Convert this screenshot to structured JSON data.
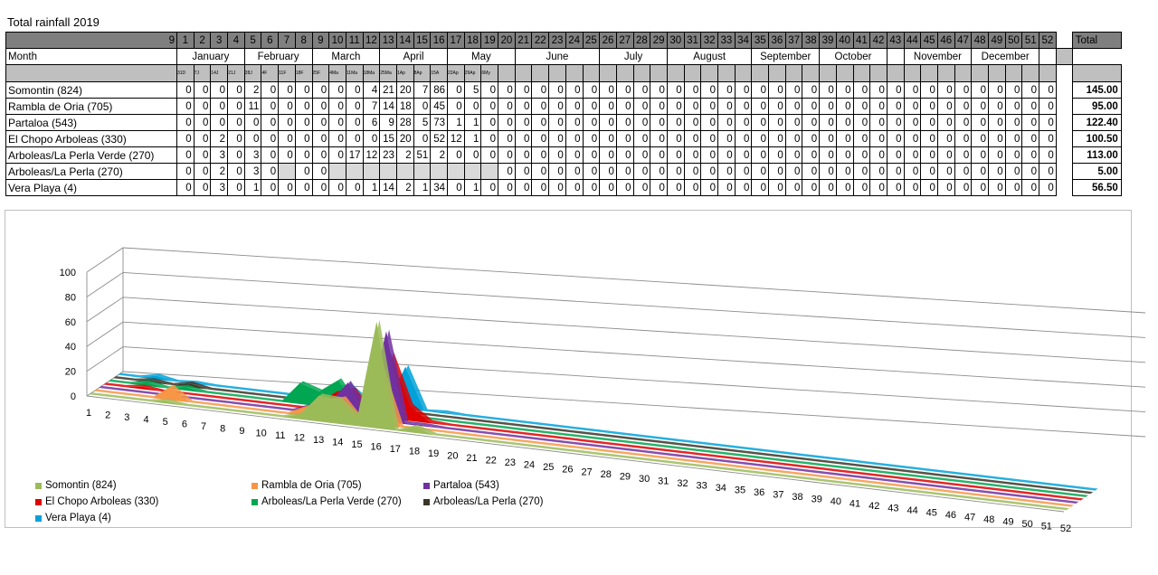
{
  "title": "Total rainfall 2019",
  "table": {
    "week_first_label": "9",
    "weeks": [
      "1",
      "2",
      "3",
      "4",
      "5",
      "6",
      "7",
      "8",
      "9",
      "10",
      "11",
      "12",
      "13",
      "14",
      "15",
      "16",
      "17",
      "18",
      "19",
      "20",
      "21",
      "22",
      "23",
      "24",
      "25",
      "26",
      "27",
      "28",
      "29",
      "30",
      "31",
      "32",
      "33",
      "34",
      "35",
      "36",
      "37",
      "38",
      "39",
      "40",
      "41",
      "42",
      "43",
      "44",
      "45",
      "46",
      "47",
      "48",
      "49",
      "50",
      "51",
      "52"
    ],
    "total_header": "Total",
    "month_header": "Month",
    "months": [
      {
        "label": "January",
        "span": 4
      },
      {
        "label": "February",
        "span": 4
      },
      {
        "label": "March",
        "span": 4
      },
      {
        "label": "April",
        "span": 4
      },
      {
        "label": "May",
        "span": 4
      },
      {
        "label": "June",
        "span": 5
      },
      {
        "label": "July",
        "span": 4
      },
      {
        "label": "August",
        "span": 5
      },
      {
        "label": "September",
        "span": 4
      },
      {
        "label": "October",
        "span": 4
      },
      {
        "label": "",
        "span": 1
      },
      {
        "label": "November",
        "span": 4
      },
      {
        "label": "December",
        "span": 4
      }
    ],
    "dates": [
      "31D",
      "7J",
      "14J",
      "21J",
      "28J",
      "4F",
      "11F",
      "18F",
      "25F",
      "4Ma",
      "11Ma",
      "18Ma",
      "25Ma",
      "1Ap",
      "8Ap",
      "15A",
      "22Ap",
      "29Ap",
      "6My"
    ],
    "rows": [
      {
        "name": "Somontin (824)",
        "values": [
          "0",
          "0",
          "0",
          "0",
          "2",
          "0",
          "0",
          "0",
          "0",
          "0",
          "0",
          "4",
          "21",
          "20",
          "7",
          "86",
          "0",
          "5",
          "0",
          "0",
          "0",
          "0",
          "0",
          "0",
          "0",
          "0",
          "0",
          "0",
          "0",
          "0",
          "0",
          "0",
          "0",
          "0",
          "0",
          "0",
          "0",
          "0",
          "0",
          "0",
          "0",
          "0",
          "0",
          "0",
          "0",
          "0",
          "0",
          "0",
          "0",
          "0",
          "0",
          "0"
        ],
        "total": "145.00"
      },
      {
        "name": "Rambla de Oria (705)",
        "values": [
          "0",
          "0",
          "0",
          "0",
          "11",
          "0",
          "0",
          "0",
          "0",
          "0",
          "0",
          "7",
          "14",
          "18",
          "0",
          "45",
          "0",
          "0",
          "0",
          "0",
          "0",
          "0",
          "0",
          "0",
          "0",
          "0",
          "0",
          "0",
          "0",
          "0",
          "0",
          "0",
          "0",
          "0",
          "0",
          "0",
          "0",
          "0",
          "0",
          "0",
          "0",
          "0",
          "0",
          "0",
          "0",
          "0",
          "0",
          "0",
          "0",
          "0",
          "0",
          "0"
        ],
        "total": "95.00"
      },
      {
        "name": "Partaloa (543)",
        "values": [
          "0",
          "0",
          "0",
          "0",
          "0",
          "0",
          "0",
          "0",
          "0",
          "0",
          "0",
          "6",
          "9",
          "28",
          "5",
          "73",
          "1",
          "1",
          "0",
          "0",
          "0",
          "0",
          "0",
          "0",
          "0",
          "0",
          "0",
          "0",
          "0",
          "0",
          "0",
          "0",
          "0",
          "0",
          "0",
          "0",
          "0",
          "0",
          "0",
          "0",
          "0",
          "0",
          "0",
          "0",
          "0",
          "0",
          "0",
          "0",
          "0",
          "0",
          "0",
          "0"
        ],
        "total": "122.40"
      },
      {
        "name": "El Chopo Arboleas (330)",
        "values": [
          "0",
          "0",
          "2",
          "0",
          "0",
          "0",
          "0",
          "0",
          "0",
          "0",
          "0",
          "0",
          "15",
          "20",
          "0",
          "52",
          "12",
          "1",
          "0",
          "0",
          "0",
          "0",
          "0",
          "0",
          "0",
          "0",
          "0",
          "0",
          "0",
          "0",
          "0",
          "0",
          "0",
          "0",
          "0",
          "0",
          "0",
          "0",
          "0",
          "0",
          "0",
          "0",
          "0",
          "0",
          "0",
          "0",
          "0",
          "0",
          "0",
          "0",
          "0",
          "0"
        ],
        "total": "100.50"
      },
      {
        "name": "Arboleas/La Perla Verde (270)",
        "values": [
          "0",
          "0",
          "3",
          "0",
          "3",
          "0",
          "0",
          "0",
          "0",
          "0",
          "17",
          "12",
          "23",
          "2",
          "51",
          "2",
          "0",
          "0",
          "0",
          "0",
          "0",
          "0",
          "0",
          "0",
          "0",
          "0",
          "0",
          "0",
          "0",
          "0",
          "0",
          "0",
          "0",
          "0",
          "0",
          "0",
          "0",
          "0",
          "0",
          "0",
          "0",
          "0",
          "0",
          "0",
          "0",
          "0",
          "0",
          "0",
          "0",
          "0",
          "0",
          "0"
        ],
        "total": "113.00"
      },
      {
        "name": "Arboleas/La Perla (270)",
        "values": [
          "0",
          "0",
          "2",
          "0",
          "3",
          "0",
          "",
          "0",
          "0",
          "",
          "",
          "",
          "",
          "",
          "",
          "",
          "",
          "",
          "",
          "0",
          "0",
          "0",
          "0",
          "0",
          "0",
          "0",
          "0",
          "0",
          "0",
          "0",
          "0",
          "0",
          "0",
          "0",
          "0",
          "0",
          "0",
          "0",
          "0",
          "0",
          "0",
          "0",
          "0",
          "0",
          "0",
          "0",
          "0",
          "0",
          "0",
          "0",
          "0",
          "0"
        ],
        "total": "5.00"
      },
      {
        "name": "Vera Playa (4)",
        "values": [
          "0",
          "0",
          "3",
          "0",
          "1",
          "0",
          "0",
          "0",
          "0",
          "0",
          "0",
          "1",
          "14",
          "2",
          "1",
          "34",
          "0",
          "1",
          "0",
          "0",
          "0",
          "0",
          "0",
          "0",
          "0",
          "0",
          "0",
          "0",
          "0",
          "0",
          "0",
          "0",
          "0",
          "0",
          "0",
          "0",
          "0",
          "0",
          "0",
          "0",
          "0",
          "0",
          "0",
          "0",
          "0",
          "0",
          "0",
          "0",
          "0",
          "0",
          "0",
          "0"
        ],
        "total": "56.50"
      }
    ]
  },
  "chart_data": {
    "type": "area",
    "title": "",
    "xlabel": "",
    "ylabel": "",
    "ylim": [
      0,
      100
    ],
    "yticks": [
      "0",
      "20",
      "40",
      "60",
      "80",
      "100"
    ],
    "x": [
      "1",
      "2",
      "3",
      "4",
      "5",
      "6",
      "7",
      "8",
      "9",
      "10",
      "11",
      "12",
      "13",
      "14",
      "15",
      "16",
      "17",
      "18",
      "19",
      "20",
      "21",
      "22",
      "23",
      "24",
      "25",
      "26",
      "27",
      "28",
      "29",
      "30",
      "31",
      "32",
      "33",
      "34",
      "35",
      "36",
      "37",
      "38",
      "39",
      "40",
      "41",
      "42",
      "43",
      "44",
      "45",
      "46",
      "47",
      "48",
      "49",
      "50",
      "51",
      "52"
    ],
    "grid": true,
    "legend_position": "bottom",
    "series": [
      {
        "name": "Somontin (824)",
        "color": "#9bbb59",
        "values": [
          0,
          0,
          0,
          0,
          2,
          0,
          0,
          0,
          0,
          0,
          0,
          4,
          21,
          20,
          7,
          86,
          0,
          5,
          0,
          0,
          0,
          0,
          0,
          0,
          0,
          0,
          0,
          0,
          0,
          0,
          0,
          0,
          0,
          0,
          0,
          0,
          0,
          0,
          0,
          0,
          0,
          0,
          0,
          0,
          0,
          0,
          0,
          0,
          0,
          0,
          0,
          0
        ]
      },
      {
        "name": "Rambla de Oria (705)",
        "color": "#f79646",
        "values": [
          0,
          0,
          0,
          0,
          11,
          0,
          0,
          0,
          0,
          0,
          0,
          7,
          14,
          18,
          0,
          45,
          0,
          0,
          0,
          0,
          0,
          0,
          0,
          0,
          0,
          0,
          0,
          0,
          0,
          0,
          0,
          0,
          0,
          0,
          0,
          0,
          0,
          0,
          0,
          0,
          0,
          0,
          0,
          0,
          0,
          0,
          0,
          0,
          0,
          0,
          0,
          0
        ]
      },
      {
        "name": "Partaloa (543)",
        "color": "#7030a0",
        "values": [
          0,
          0,
          0,
          0,
          0,
          0,
          0,
          0,
          0,
          0,
          0,
          6,
          9,
          28,
          5,
          73,
          1,
          1,
          0,
          0,
          0,
          0,
          0,
          0,
          0,
          0,
          0,
          0,
          0,
          0,
          0,
          0,
          0,
          0,
          0,
          0,
          0,
          0,
          0,
          0,
          0,
          0,
          0,
          0,
          0,
          0,
          0,
          0,
          0,
          0,
          0,
          0
        ]
      },
      {
        "name": "El Chopo Arboleas (330)",
        "color": "#e00000",
        "values": [
          0,
          0,
          2,
          0,
          0,
          0,
          0,
          0,
          0,
          0,
          0,
          0,
          15,
          20,
          0,
          52,
          12,
          1,
          0,
          0,
          0,
          0,
          0,
          0,
          0,
          0,
          0,
          0,
          0,
          0,
          0,
          0,
          0,
          0,
          0,
          0,
          0,
          0,
          0,
          0,
          0,
          0,
          0,
          0,
          0,
          0,
          0,
          0,
          0,
          0,
          0,
          0
        ]
      },
      {
        "name": "Arboleas/La Perla Verde (270)",
        "color": "#00a651",
        "values": [
          0,
          0,
          3,
          0,
          3,
          0,
          0,
          0,
          0,
          0,
          17,
          12,
          23,
          2,
          51,
          2,
          0,
          0,
          0,
          0,
          0,
          0,
          0,
          0,
          0,
          0,
          0,
          0,
          0,
          0,
          0,
          0,
          0,
          0,
          0,
          0,
          0,
          0,
          0,
          0,
          0,
          0,
          0,
          0,
          0,
          0,
          0,
          0,
          0,
          0,
          0,
          0
        ]
      },
      {
        "name": "Arboleas/La Perla (270)",
        "color": "#3a3528",
        "values": [
          0,
          0,
          2,
          0,
          3,
          0,
          0,
          0,
          0,
          0,
          0,
          0,
          0,
          0,
          0,
          0,
          0,
          0,
          0,
          0,
          0,
          0,
          0,
          0,
          0,
          0,
          0,
          0,
          0,
          0,
          0,
          0,
          0,
          0,
          0,
          0,
          0,
          0,
          0,
          0,
          0,
          0,
          0,
          0,
          0,
          0,
          0,
          0,
          0,
          0,
          0,
          0
        ]
      },
      {
        "name": "Vera Playa (4)",
        "color": "#00a2d9",
        "values": [
          0,
          0,
          3,
          0,
          1,
          0,
          0,
          0,
          0,
          0,
          0,
          1,
          14,
          2,
          1,
          34,
          0,
          1,
          0,
          0,
          0,
          0,
          0,
          0,
          0,
          0,
          0,
          0,
          0,
          0,
          0,
          0,
          0,
          0,
          0,
          0,
          0,
          0,
          0,
          0,
          0,
          0,
          0,
          0,
          0,
          0,
          0,
          0,
          0,
          0,
          0,
          0
        ]
      }
    ]
  }
}
